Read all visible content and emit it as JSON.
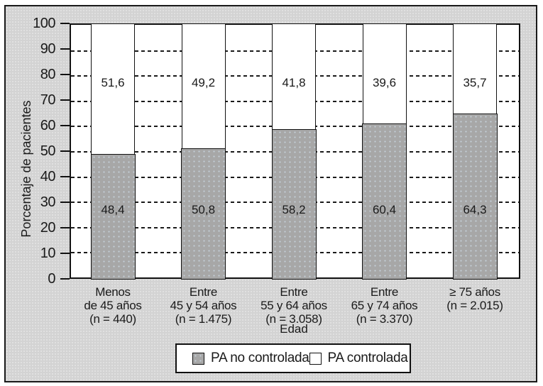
{
  "colors": {
    "background": "#d3d3d3",
    "frame_border": "#1a1a1a",
    "bar_gray": "#a7a7a7",
    "bar_white": "#ffffff",
    "grid_line": "#1a1a1a"
  },
  "chart_data": {
    "type": "bar",
    "stacked": true,
    "title": "",
    "ylabel": "Porcentaje de pacientes",
    "xlabel": "Edad",
    "ylim": [
      0,
      100
    ],
    "yticks": [
      0,
      10,
      20,
      30,
      40,
      50,
      60,
      70,
      80,
      90,
      100
    ],
    "grid": "horizontal-dashed",
    "legend_position": "bottom",
    "categories": [
      {
        "lines": [
          "Menos",
          "de 45 años",
          "(n = 440)"
        ]
      },
      {
        "lines": [
          "Entre",
          "45 y 54 años",
          "(n = 1.475)"
        ]
      },
      {
        "lines": [
          "Entre",
          "55 y 64 años",
          "(n = 3.058)"
        ]
      },
      {
        "lines": [
          "Entre",
          "65 y 74 años",
          "(n = 3.370)"
        ]
      },
      {
        "lines": [
          "≥ 75 años",
          "(n = 2.015)"
        ]
      }
    ],
    "series": [
      {
        "name": "PA no controlada",
        "color": "#a7a7a7",
        "values": [
          48.4,
          50.8,
          58.2,
          60.4,
          64.3
        ],
        "value_labels": [
          "48,4",
          "50,8",
          "58,2",
          "60,4",
          "64,3"
        ]
      },
      {
        "name": "PA controlada",
        "color": "#ffffff",
        "values": [
          51.6,
          49.2,
          41.8,
          39.6,
          35.7
        ],
        "value_labels": [
          "51,6",
          "49,2",
          "41,8",
          "39,6",
          "35,7"
        ]
      }
    ]
  }
}
